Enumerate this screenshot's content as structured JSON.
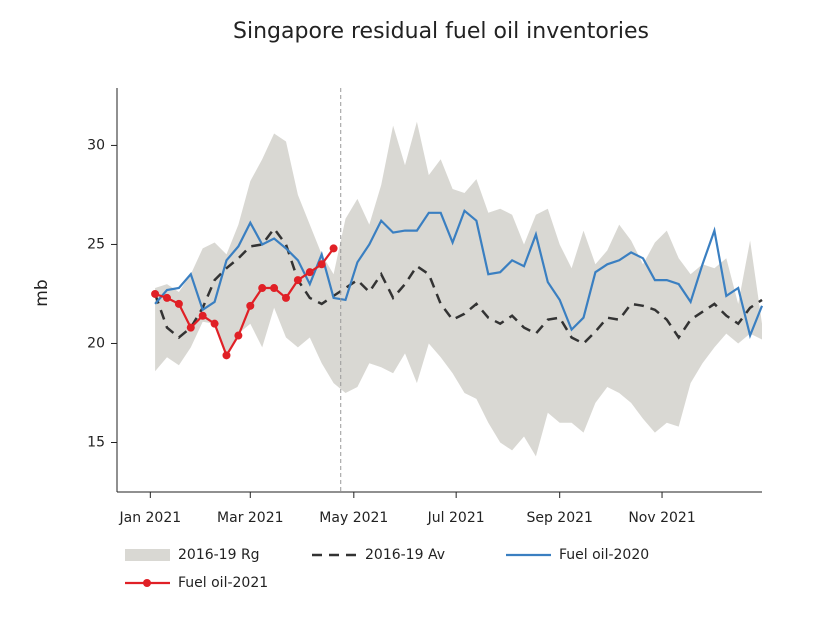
{
  "chart_data": {
    "type": "line",
    "title": "Singapore residual fuel oil inventories",
    "y_label": "mb",
    "x": [
      0,
      1,
      2,
      3,
      4,
      5,
      6,
      7,
      8,
      9,
      10,
      11,
      12,
      13,
      14,
      15,
      16,
      17,
      18,
      19,
      20,
      21,
      22,
      23,
      24,
      25,
      26,
      27,
      28,
      29,
      30,
      31,
      32,
      33,
      34,
      35,
      36,
      37,
      38,
      39,
      40,
      41,
      42,
      43,
      44,
      45,
      46,
      47,
      48,
      49,
      50,
      51
    ],
    "xlim": [
      -3.2,
      51
    ],
    "xticks": [
      {
        "value": -0.4,
        "label": "Jan 2021"
      },
      {
        "value": 8.0,
        "label": "Mar 2021"
      },
      {
        "value": 16.7,
        "label": "May 2021"
      },
      {
        "value": 25.3,
        "label": "Jul 2021"
      },
      {
        "value": 34.0,
        "label": "Sep 2021"
      },
      {
        "value": 42.6,
        "label": "Nov 2021"
      }
    ],
    "ylim": [
      12.5,
      32.9
    ],
    "yticks": [
      15,
      20,
      25,
      30
    ],
    "vline": 15.6,
    "series": [
      {
        "name": "2016-19 Rg",
        "color": "#d9d8d3",
        "style": "band",
        "high": [
          22.8,
          23.0,
          22.6,
          23.5,
          24.8,
          25.1,
          24.5,
          26.0,
          28.2,
          29.3,
          30.6,
          30.2,
          27.5,
          26.0,
          24.5,
          23.5,
          26.3,
          27.3,
          26.0,
          28.0,
          31.0,
          29.0,
          31.2,
          28.5,
          29.3,
          27.8,
          27.6,
          28.3,
          26.6,
          26.8,
          26.5,
          25.0,
          26.5,
          26.8,
          25.0,
          23.8,
          25.7,
          24.0,
          24.7,
          26.0,
          25.2,
          24.0,
          25.1,
          25.7,
          24.3,
          23.5,
          24.0,
          23.8,
          24.3,
          22.0,
          25.2,
          21.0
        ],
        "low": [
          18.6,
          19.3,
          18.9,
          19.8,
          21.1,
          21.0,
          19.5,
          20.5,
          21.0,
          19.8,
          21.8,
          20.3,
          19.8,
          20.3,
          19.0,
          18.0,
          17.5,
          17.8,
          19.0,
          18.8,
          18.5,
          19.5,
          18.0,
          20.0,
          19.3,
          18.5,
          17.5,
          17.2,
          16.0,
          15.0,
          14.6,
          15.3,
          14.3,
          16.5,
          16.0,
          16.0,
          15.5,
          17.0,
          17.8,
          17.5,
          17.0,
          16.2,
          15.5,
          16.0,
          15.8,
          18.0,
          19.0,
          19.8,
          20.5,
          20.0,
          20.5,
          20.2
        ]
      },
      {
        "name": "2016-19 Av",
        "color": "#333333",
        "style": "dashed",
        "values": [
          22.5,
          20.8,
          20.3,
          20.8,
          21.8,
          23.2,
          23.8,
          24.3,
          24.9,
          25.0,
          25.8,
          25.0,
          23.2,
          22.3,
          22.0,
          22.4,
          22.8,
          23.2,
          22.6,
          23.5,
          22.3,
          23.0,
          23.9,
          23.5,
          22.0,
          21.2,
          21.5,
          22.0,
          21.3,
          21.0,
          21.4,
          20.8,
          20.5,
          21.2,
          21.3,
          20.3,
          20.0,
          20.6,
          21.3,
          21.2,
          22.0,
          21.9,
          21.7,
          21.2,
          20.3,
          21.2,
          21.6,
          22.0,
          21.4,
          21.0,
          21.8,
          22.2
        ]
      },
      {
        "name": "Fuel oil-2020",
        "color": "#3a7fc1",
        "style": "solid",
        "values": [
          22.0,
          22.7,
          22.8,
          23.5,
          21.7,
          22.1,
          24.2,
          24.9,
          26.1,
          25.0,
          25.3,
          24.8,
          24.2,
          23.0,
          24.5,
          22.3,
          22.2,
          24.1,
          25.0,
          26.2,
          25.6,
          25.7,
          25.7,
          26.6,
          26.6,
          25.1,
          26.7,
          26.2,
          23.5,
          23.6,
          24.2,
          23.9,
          25.5,
          23.1,
          22.2,
          20.7,
          21.3,
          23.6,
          24.0,
          24.2,
          24.6,
          24.3,
          23.2,
          23.2,
          23.0,
          22.1,
          24.0,
          25.7,
          22.4,
          22.8,
          20.4,
          21.9
        ]
      },
      {
        "name": "Fuel oil-2021",
        "color": "#e02026",
        "style": "markers",
        "values": [
          22.5,
          22.3,
          22.0,
          20.8,
          21.4,
          21.0,
          19.4,
          20.4,
          21.9,
          22.8,
          22.8,
          22.3,
          23.2,
          23.6,
          24.0,
          24.8,
          null,
          null,
          null,
          null,
          null,
          null,
          null,
          null,
          null,
          null,
          null,
          null,
          null,
          null,
          null,
          null,
          null,
          null,
          null,
          null,
          null,
          null,
          null,
          null,
          null,
          null,
          null,
          null,
          null,
          null,
          null,
          null,
          null,
          null,
          null,
          null
        ]
      }
    ]
  }
}
